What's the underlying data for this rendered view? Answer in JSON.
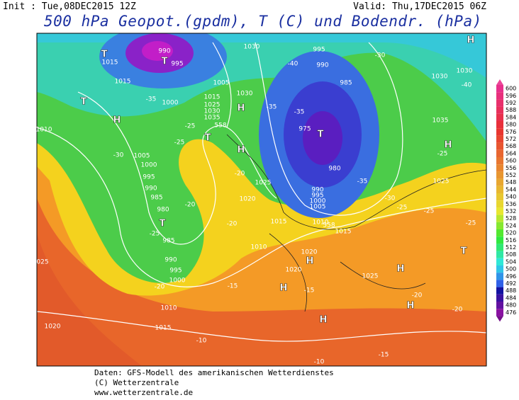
{
  "header": {
    "init": "Init : Tue,08DEC2015 12Z",
    "valid": "Valid: Thu,17DEC2015 06Z",
    "title": "500 hPa Geopot.(gpdm), T (C) und Bodendr. (hPa)"
  },
  "map_labels": [
    "1015",
    "990",
    "995",
    "1030",
    "995",
    "990",
    "1030",
    "1030",
    "-40",
    "-30",
    "-40",
    "985",
    "1015",
    "-35",
    "1000",
    "1005",
    "1030",
    "1015",
    "1025",
    "1030",
    "1035",
    "558",
    "-35",
    "-35",
    "975",
    "1035",
    "1010",
    "-30",
    "1005",
    "-25",
    "-25",
    "1000",
    "995",
    "990",
    "985",
    "980",
    "-20",
    "-25",
    "985",
    "-20",
    "980",
    "990",
    "995",
    "1000",
    "1005",
    "-35",
    "-30",
    "-25",
    "1020",
    "1025",
    "1015",
    "1010",
    "558",
    "1015",
    "-20",
    "1025",
    "-25",
    "-25",
    "1010",
    "1020",
    "1020",
    "1025",
    "990",
    "995",
    "1000",
    "-20",
    "-15",
    "-15",
    "1010",
    "-20",
    "-20",
    "1015",
    "1020",
    "-10",
    "-15",
    "-10",
    "025",
    "-25",
    "H",
    "T",
    "T",
    "T",
    "H",
    "H",
    "T",
    "H",
    "T",
    "H",
    "T",
    "H",
    "H",
    "T",
    "H",
    "H",
    "H"
  ],
  "colorbar": {
    "values": [
      600,
      596,
      592,
      588,
      584,
      580,
      576,
      572,
      568,
      564,
      560,
      556,
      552,
      548,
      544,
      540,
      536,
      532,
      528,
      524,
      520,
      516,
      512,
      508,
      504,
      500,
      496,
      492,
      488,
      484,
      480,
      476
    ]
  },
  "footer": [
    "Daten: GFS-Modell des amerikanischen Wetterdienstes",
    "(C) Wetterzentrale",
    "www.wetterzentrale.de"
  ]
}
